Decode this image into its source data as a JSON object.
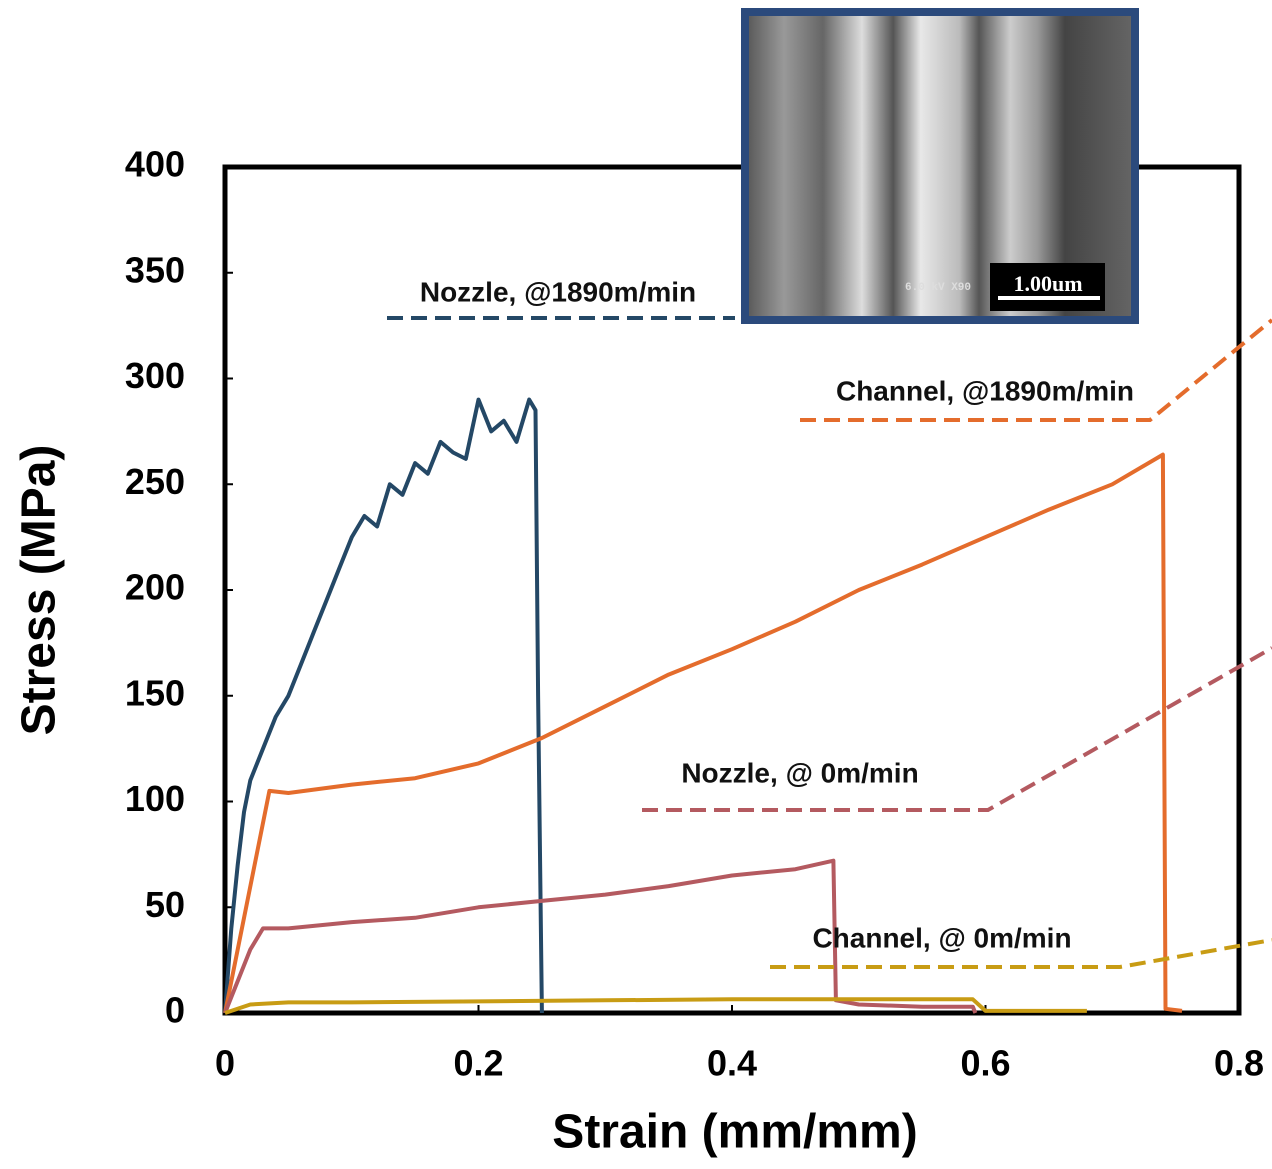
{
  "chart_data": {
    "type": "line",
    "xlabel": "Strain (mm/mm)",
    "ylabel": "Stress (MPa)",
    "xlim": [
      0,
      0.8
    ],
    "ylim": [
      0,
      400
    ],
    "xticks": [
      0,
      0.2,
      0.4,
      0.6,
      0.8
    ],
    "yticks": [
      0,
      50,
      100,
      150,
      200,
      250,
      300,
      350,
      400
    ],
    "grid": false,
    "series": [
      {
        "name": "Nozzle, @1890m/min",
        "color": "#244866",
        "x": [
          0,
          0.005,
          0.01,
          0.015,
          0.02,
          0.03,
          0.04,
          0.05,
          0.06,
          0.07,
          0.08,
          0.09,
          0.1,
          0.11,
          0.12,
          0.13,
          0.14,
          0.15,
          0.16,
          0.17,
          0.18,
          0.19,
          0.2,
          0.21,
          0.22,
          0.23,
          0.24,
          0.245,
          0.247,
          0.25
        ],
        "values": [
          0,
          40,
          70,
          95,
          110,
          125,
          140,
          150,
          165,
          180,
          195,
          210,
          225,
          235,
          230,
          250,
          245,
          260,
          255,
          270,
          265,
          262,
          290,
          275,
          280,
          270,
          290,
          285,
          150,
          0
        ]
      },
      {
        "name": "Channel, @1890m/min",
        "color": "#e46c2c",
        "x": [
          0,
          0.035,
          0.05,
          0.1,
          0.15,
          0.2,
          0.25,
          0.3,
          0.35,
          0.4,
          0.45,
          0.5,
          0.55,
          0.6,
          0.65,
          0.7,
          0.74,
          0.742,
          0.755
        ],
        "values": [
          0,
          105,
          104,
          108,
          111,
          118,
          130,
          145,
          160,
          172,
          185,
          200,
          212,
          225,
          238,
          250,
          264,
          2,
          1
        ]
      },
      {
        "name": "Nozzle, @ 0m/min",
        "color": "#b45a60",
        "x": [
          0,
          0.02,
          0.03,
          0.05,
          0.1,
          0.15,
          0.2,
          0.25,
          0.3,
          0.35,
          0.4,
          0.45,
          0.48,
          0.482,
          0.5,
          0.55,
          0.59,
          0.592
        ],
        "values": [
          0,
          30,
          40,
          40,
          43,
          45,
          50,
          53,
          56,
          60,
          65,
          68,
          72,
          6,
          4,
          3,
          3,
          0
        ]
      },
      {
        "name": "Channel, @ 0m/min",
        "color": "#c89c14",
        "x": [
          0,
          0.02,
          0.05,
          0.1,
          0.2,
          0.3,
          0.4,
          0.5,
          0.59,
          0.6,
          0.65,
          0.68
        ],
        "values": [
          0,
          4,
          5,
          5,
          5.5,
          6,
          6.5,
          6.5,
          6.5,
          1,
          1,
          1
        ]
      }
    ]
  },
  "inset": {
    "scale_label": "1.00um",
    "info": "6.0 kV X90"
  }
}
